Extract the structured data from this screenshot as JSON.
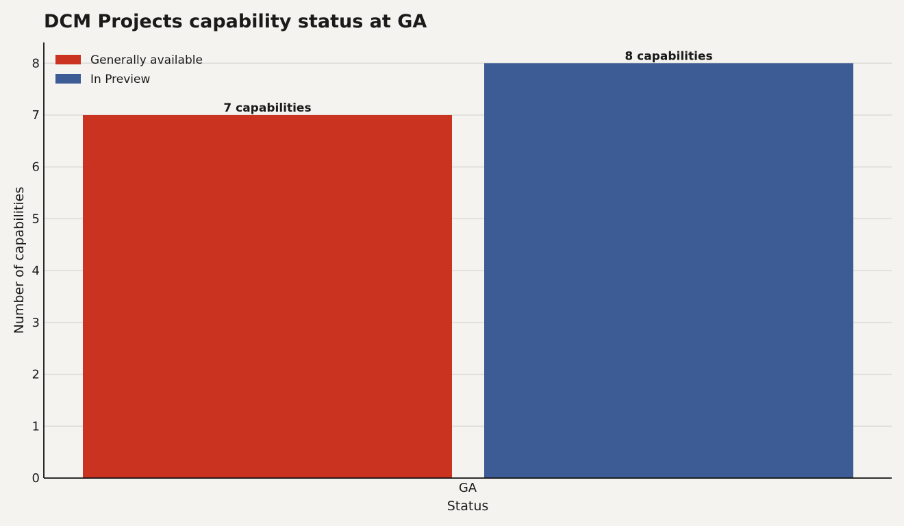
{
  "chart_data": {
    "type": "bar",
    "title": "DCM Projects capability status at GA",
    "xlabel": "Status",
    "ylabel": "Number of capabilities",
    "categories": [
      "GA"
    ],
    "series": [
      {
        "name": "Generally available",
        "values": [
          7
        ],
        "color": "#c9331f",
        "label": "7 capabilities"
      },
      {
        "name": "In Preview",
        "values": [
          8
        ],
        "color": "#3d5b94",
        "label": "8 capabilities"
      }
    ],
    "ylim": [
      0,
      8.4
    ],
    "yticks": [
      "0",
      "1",
      "2",
      "3",
      "4",
      "5",
      "6",
      "7",
      "8"
    ],
    "grid": true,
    "legend_position": "top-left"
  }
}
